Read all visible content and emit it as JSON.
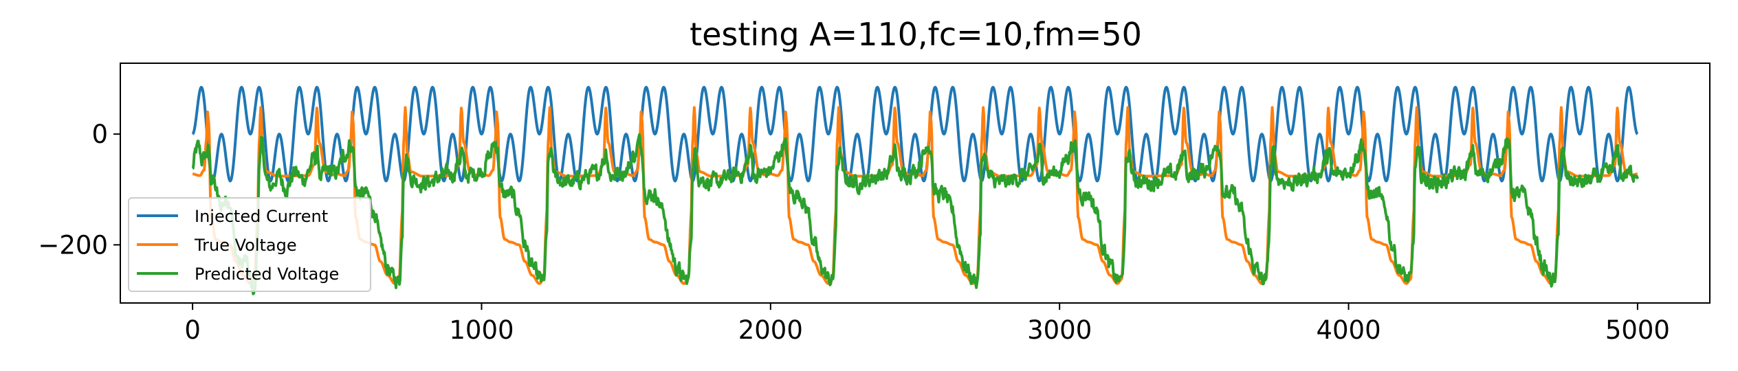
{
  "chart_data": {
    "type": "line",
    "title": "testing A=110,fc=10,fm=50",
    "xlabel": "",
    "ylabel": "",
    "xlim": [
      -250,
      5250
    ],
    "ylim": [
      -305,
      128
    ],
    "x_ticks": [
      0,
      1000,
      2000,
      3000,
      4000,
      5000
    ],
    "y_ticks": [
      0,
      -200
    ],
    "grid": false,
    "legend_position": "lower-left",
    "series": [
      {
        "name": "Injected Current",
        "color": "#1f77b4",
        "formula": "110*sin(pi*t/100)*sin(pi*t/50)",
        "x_range": [
          0,
          5000
        ]
      },
      {
        "name": "True Voltage",
        "color": "#ff7f0e",
        "x_range": [
          0,
          5000
        ],
        "keyframes_one_period": [
          [
            0,
            -72
          ],
          [
            25,
            -75
          ],
          [
            40,
            -65
          ],
          [
            48,
            -10
          ],
          [
            52,
            40
          ],
          [
            56,
            20
          ],
          [
            64,
            -150
          ],
          [
            80,
            -190
          ],
          [
            100,
            -195
          ],
          [
            130,
            -200
          ],
          [
            150,
            -230
          ],
          [
            175,
            -255
          ],
          [
            200,
            -270
          ],
          [
            215,
            -262
          ],
          [
            225,
            -150
          ],
          [
            230,
            -20
          ],
          [
            236,
            48
          ],
          [
            243,
            -35
          ],
          [
            255,
            -68
          ],
          [
            295,
            -76
          ],
          [
            400,
            -75
          ],
          [
            422,
            -55
          ],
          [
            430,
            47
          ],
          [
            438,
            -15
          ],
          [
            460,
            -68
          ],
          [
            480,
            -74
          ],
          [
            500,
            -72
          ]
        ]
      },
      {
        "name": "Predicted Voltage",
        "color": "#2ca02c",
        "x_range": [
          0,
          5000
        ],
        "keyframes_one_period": [
          [
            0,
            -65
          ],
          [
            30,
            -38
          ],
          [
            45,
            -15
          ],
          [
            55,
            -25
          ],
          [
            65,
            -100
          ],
          [
            80,
            -110
          ],
          [
            100,
            -108
          ],
          [
            130,
            -140
          ],
          [
            150,
            -200
          ],
          [
            175,
            -240
          ],
          [
            200,
            -262
          ],
          [
            215,
            -265
          ],
          [
            225,
            -190
          ],
          [
            230,
            -60
          ],
          [
            240,
            -35
          ],
          [
            255,
            -80
          ],
          [
            300,
            -88
          ],
          [
            400,
            -72
          ],
          [
            425,
            -45
          ],
          [
            430,
            -28
          ],
          [
            445,
            -75
          ],
          [
            480,
            -70
          ],
          [
            500,
            -65
          ]
        ]
      }
    ]
  }
}
